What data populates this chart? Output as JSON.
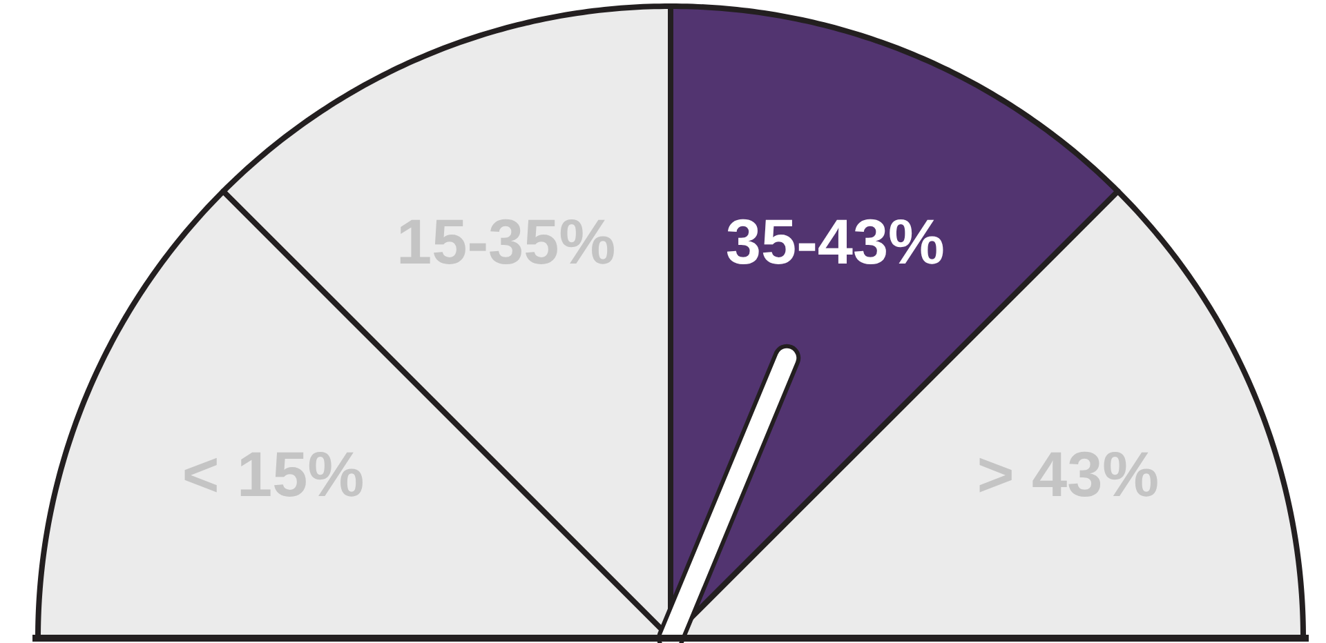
{
  "chart_data": {
    "type": "pie",
    "categories": [
      "< 15%",
      "15-35%",
      "35-43%",
      "> 43%"
    ],
    "values": [
      25,
      25,
      25,
      25
    ],
    "colors": [
      "#ebebeb",
      "#ebebeb",
      "#523470",
      "#ebebeb"
    ],
    "needle": "35-43%"
  }
}
